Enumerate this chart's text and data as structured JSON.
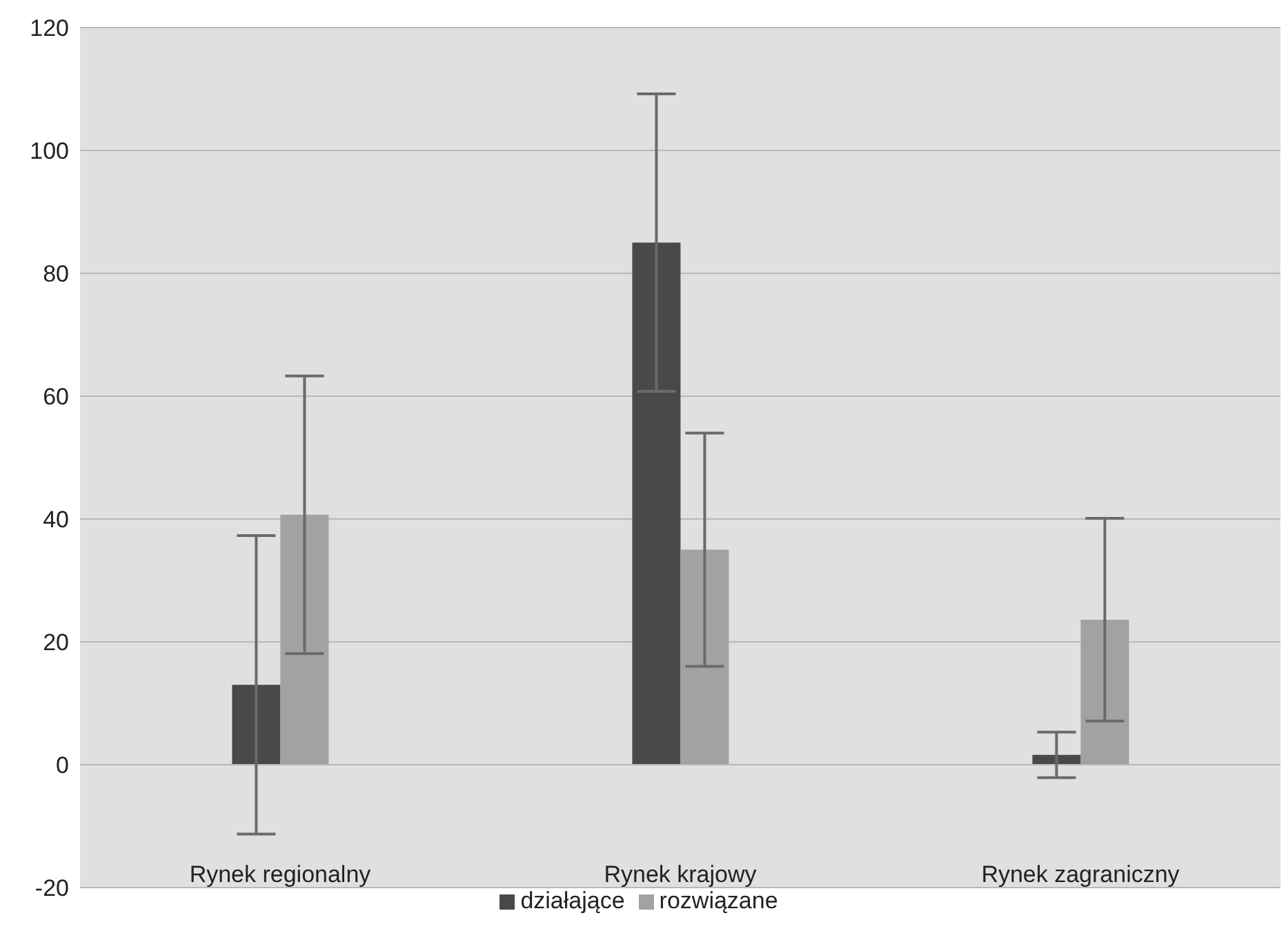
{
  "chart_data": {
    "type": "bar",
    "categories": [
      "Rynek regionalny",
      "Rynek krajowy",
      "Rynek zagraniczny"
    ],
    "series": [
      {
        "name": "działające",
        "color": "#494949",
        "values": [
          13,
          85,
          1.6
        ],
        "errors": [
          24.3,
          24.2,
          3.7
        ]
      },
      {
        "name": "rozwiązane",
        "color": "#a2a2a2",
        "values": [
          40.7,
          35,
          23.6
        ],
        "errors": [
          22.6,
          19,
          16.5
        ]
      }
    ],
    "ylim": [
      -20,
      120
    ],
    "yticks": [
      -20,
      0,
      20,
      40,
      60,
      80,
      100,
      120
    ],
    "grid": "y",
    "legend": "bottom"
  }
}
